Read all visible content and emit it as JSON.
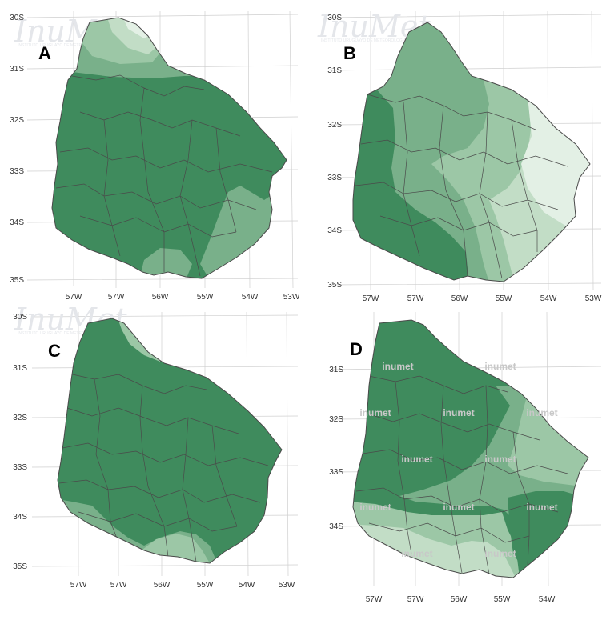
{
  "colors": {
    "c1": "#3f8b5d",
    "c2": "#79b08a",
    "c3": "#9cc7a6",
    "c4": "#c2ddc6",
    "c5": "#e3f0e5",
    "line": "#4a4a4a",
    "grid": "#cfcfcf"
  },
  "watermark": {
    "logo": "InuMet",
    "subtitle": "INSTITUTO URUGUAYO DE METEOROLOGÍA"
  },
  "panels": [
    {
      "label": "A",
      "lat_ticks": [
        "30S",
        "31S",
        "32S",
        "33S",
        "34S",
        "35S"
      ],
      "lon_ticks": [
        "57W",
        "57W",
        "56W",
        "55W",
        "54W",
        "53W"
      ],
      "zones": [
        "c1",
        "c2",
        "c3",
        "c4",
        "c5"
      ],
      "inumet_labels": []
    },
    {
      "label": "B",
      "lat_ticks": [
        "30S",
        "31S",
        "32S",
        "33S",
        "34S",
        "35S"
      ],
      "lon_ticks": [
        "57W",
        "57W",
        "56W",
        "55W",
        "54W",
        "53W"
      ],
      "zones": [
        "c1",
        "c2",
        "c3",
        "c4",
        "c5"
      ],
      "inumet_labels": []
    },
    {
      "label": "C",
      "lat_ticks": [
        "30S",
        "31S",
        "32S",
        "33S",
        "34S",
        "35S"
      ],
      "lon_ticks": [
        "57W",
        "57W",
        "56W",
        "55W",
        "54W",
        "53W"
      ],
      "zones": [
        "c1",
        "c2",
        "c3",
        "c4"
      ],
      "inumet_labels": []
    },
    {
      "label": "D",
      "lat_ticks": [
        "31S",
        "32S",
        "33S",
        "34S"
      ],
      "lon_ticks": [
        "57W",
        "57W",
        "56W",
        "55W",
        "54W"
      ],
      "zones": [
        "c1",
        "c2",
        "c3",
        "c4",
        "c5"
      ],
      "inumet_labels": [
        "inumet",
        "inumet",
        "inumet",
        "inumet",
        "inumet",
        "inumet",
        "inumet",
        "inumet",
        "inumet",
        "inumet",
        "inumet",
        "inumet"
      ]
    }
  ]
}
